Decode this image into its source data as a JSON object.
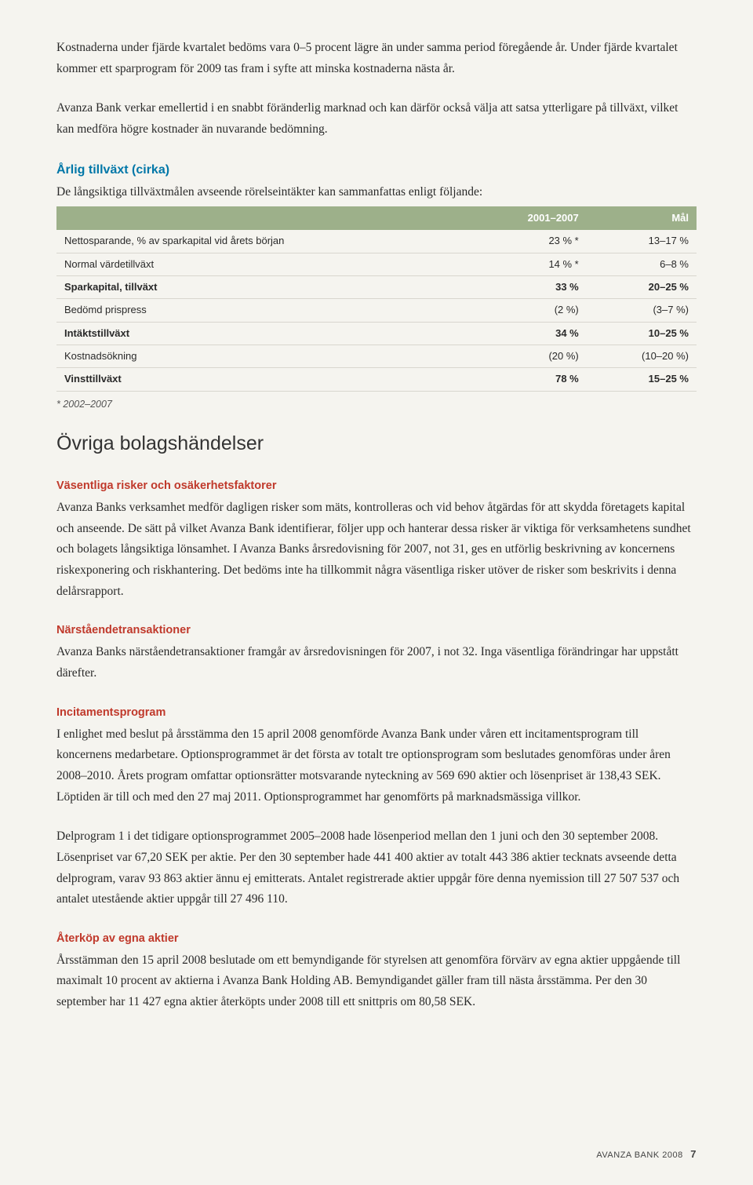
{
  "paragraphs": {
    "p1": "Kostnaderna under fjärde kvartalet bedöms vara 0–5 procent lägre än under samma period föregående år. Under fjärde kvartalet kommer ett sparprogram för 2009 tas fram i syfte att minska kostnaderna nästa år.",
    "p2": "Avanza Bank verkar emellertid i en snabbt föränderlig marknad och kan därför också välja att satsa ytterligare på tillväxt, vilket kan medföra högre kostnader än nuvarande bedömning.",
    "growth_title": "Årlig tillväxt (cirka)",
    "growth_intro": "De långsiktiga tillväxtmålen avseende rörelseintäkter kan sammanfattas enligt följande:",
    "footnote": "* 2002–2007",
    "h2_ovriga": "Övriga bolagshändelser",
    "risk_title": "Väsentliga risker och osäkerhetsfaktorer",
    "risk_body": "Avanza Banks verksamhet medför dagligen risker som mäts, kontrolleras och vid behov åtgärdas för att skydda företagets kapital och anseende. De sätt på vilket Avanza Bank identifierar, följer upp och hanterar dessa risker är viktiga för verksamhetens sundhet och bolagets långsiktiga lönsamhet. I Avanza Banks årsredovisning för 2007, not 31, ges en utförlig beskrivning av koncernens riskexponering och riskhantering. Det bedöms inte ha tillkommit några väsentliga risker utöver de risker som beskrivits i denna delårsrapport.",
    "related_title": "Närståendetransaktioner",
    "related_body": "Avanza Banks närståendetransaktioner framgår av årsredovisningen för 2007, i not 32. Inga väsentliga förändringar har uppstått därefter.",
    "incentive_title": "Incitamentsprogram",
    "incentive_body1": "I enlighet med beslut på årsstämma den 15 april 2008 genomförde Avanza Bank under våren ett incitamentsprogram till koncernens medarbetare. Optionsprogrammet är det första av totalt tre optionsprogram som beslutades genomföras under åren 2008–2010. Årets program omfattar optionsrätter motsvarande nyteckning av 569 690 aktier och lösenpriset är 138,43 SEK. Löptiden är till och med den 27 maj 2011. Optionsprogrammet har genomförts på marknadsmässiga villkor.",
    "incentive_body2": "Delprogram 1 i det tidigare optionsprogrammet 2005–2008 hade lösenperiod mellan den 1 juni och den 30 september 2008. Lösenpriset var 67,20 SEK per aktie. Per den 30 september hade 441 400 aktier av totalt 443 386 aktier tecknats avseende detta delprogram, varav 93 863 aktier ännu ej emitterats. Antalet registrerade aktier uppgår före denna nyemission till 27 507 537 och antalet utestående aktier uppgår till 27 496 110.",
    "buyback_title": "Återköp av egna aktier",
    "buyback_body": "Årsstämman den 15 april 2008 beslutade om ett bemyndigande för styrelsen att genomföra förvärv av egna aktier uppgående till maximalt 10 procent av aktierna i Avanza Bank Holding AB. Bemyndigandet gäller fram till nästa årsstämma. Per den 30 september har 11 427 egna aktier återköpts under 2008 till ett snittpris om 80,58 SEK."
  },
  "table": {
    "headers": {
      "col1": "",
      "col2": "2001–2007",
      "col3": "Mål"
    },
    "rows": [
      {
        "label": "Nettosparande, % av sparkapital vid årets början",
        "c2": "23 % *",
        "c3": "13–17 %",
        "bold": false
      },
      {
        "label": "Normal värdetillväxt",
        "c2": "14 % *",
        "c3": "6–8 %",
        "bold": false
      },
      {
        "label": "Sparkapital, tillväxt",
        "c2": "33 %",
        "c3": "20–25 %",
        "bold": true
      },
      {
        "label": "Bedömd prispress",
        "c2": "(2 %)",
        "c3": "(3–7 %)",
        "bold": false
      },
      {
        "label": "Intäktstillväxt",
        "c2": "34 %",
        "c3": "10–25 %",
        "bold": true
      },
      {
        "label": "Kostnadsökning",
        "c2": "(20 %)",
        "c3": "(10–20 %)",
        "bold": false
      },
      {
        "label": "Vinsttillväxt",
        "c2": "78 %",
        "c3": "15–25 %",
        "bold": true
      }
    ]
  },
  "footer": {
    "text": "AVANZA BANK 2008",
    "page": "7"
  }
}
